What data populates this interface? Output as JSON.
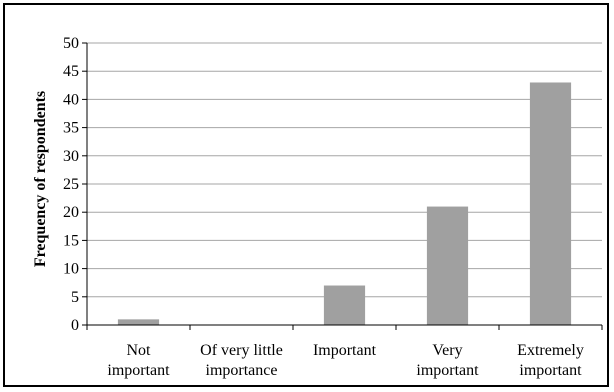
{
  "chart_data": {
    "type": "bar",
    "title": "",
    "xlabel": "",
    "ylabel": "Frequency of respondents",
    "ylim": [
      0,
      50
    ],
    "yticks": [
      "0",
      "5",
      "10",
      "15",
      "20",
      "25",
      "30",
      "35",
      "40",
      "45",
      "50"
    ],
    "categories": [
      [
        "Not",
        "important"
      ],
      [
        "Of very little",
        "importance"
      ],
      [
        "Important"
      ],
      [
        "Very",
        "important"
      ],
      [
        "Extremely",
        "important"
      ]
    ],
    "values": [
      1,
      0,
      7,
      21,
      43
    ],
    "grid": true,
    "legend": "none",
    "bar_color": "#a0a0a0",
    "grid_color": "#a6a6a6"
  }
}
